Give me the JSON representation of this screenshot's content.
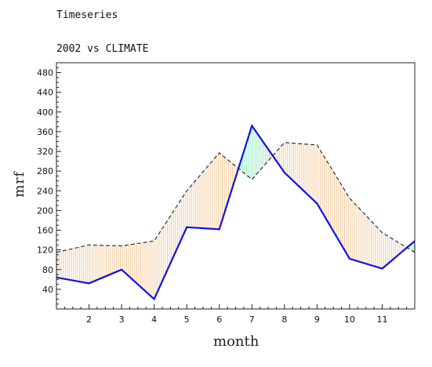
{
  "chart_data": {
    "type": "line",
    "title": "Timeseries",
    "subtitle": "2002 vs CLIMATE",
    "xlabel": "month",
    "ylabel": "mrf",
    "x": [
      1,
      2,
      3,
      4,
      5,
      6,
      7,
      8,
      9,
      10,
      11,
      12
    ],
    "xticks": [
      2,
      3,
      4,
      5,
      6,
      7,
      8,
      9,
      10,
      11
    ],
    "yticks": [
      40,
      80,
      120,
      160,
      200,
      240,
      280,
      320,
      360,
      400,
      440,
      480
    ],
    "xlim": [
      1,
      12
    ],
    "ylim": [
      0,
      500
    ],
    "series": [
      {
        "values": [
          64,
          52,
          80,
          20,
          166,
          162,
          372,
          277,
          214,
          102,
          82,
          138
        ],
        "color": "#1010ee",
        "style": "solid"
      },
      {
        "values": [
          115,
          130,
          128,
          138,
          240,
          317,
          263,
          338,
          333,
          225,
          155,
          115
        ],
        "color": "#222222",
        "style": "dashed"
      }
    ],
    "fill_below_color": "#f3c99a",
    "fill_above_color": "#8ee8b8",
    "grid": false
  }
}
